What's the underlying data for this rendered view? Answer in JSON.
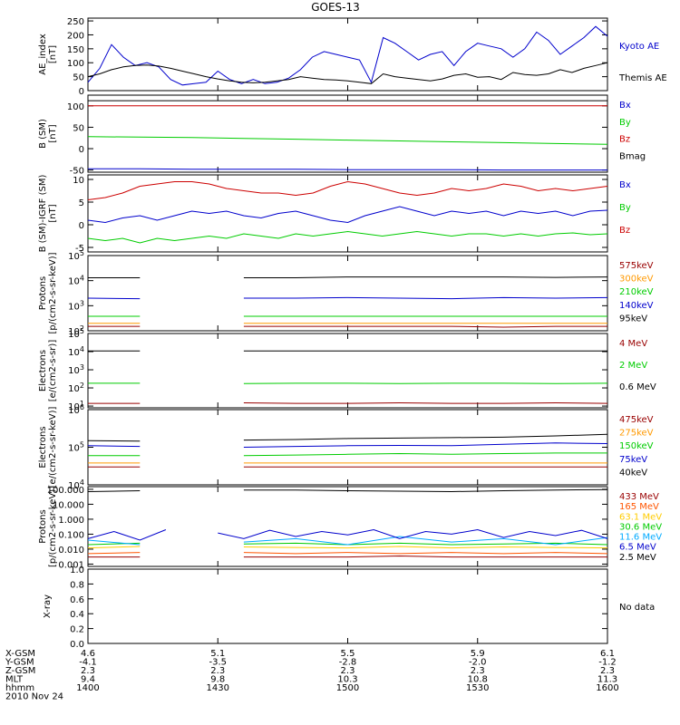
{
  "chart_data": {
    "type": "line",
    "title": "GOES-13",
    "x_ticks": [
      "1400",
      "1430",
      "1500",
      "1530",
      "1600"
    ],
    "orbit_labels": {
      "rows": [
        {
          "name": "X-GSM",
          "values": [
            "4.6",
            "5.1",
            "5.5",
            "5.9",
            "6.1"
          ]
        },
        {
          "name": "Y-GSM",
          "values": [
            "-4.1",
            "-3.5",
            "-2.8",
            "-2.0",
            "-1.2"
          ]
        },
        {
          "name": "Z-GSM",
          "values": [
            "2.3",
            "2.3",
            "2.3",
            "2.3",
            "2.3"
          ]
        },
        {
          "name": "MLT",
          "values": [
            "9.4",
            "9.8",
            "10.3",
            "10.8",
            "11.3"
          ]
        },
        {
          "name": "hhmm",
          "values": [
            "1400",
            "1430",
            "1500",
            "1530",
            "1600"
          ]
        }
      ],
      "date": "2010 Nov 24"
    },
    "panels": [
      {
        "ylabel": "AE_index\n[nT]",
        "scale": "linear",
        "ylim": [
          0,
          260
        ],
        "ytick_labels": [
          "250",
          "200",
          "150",
          "100",
          "50",
          "0"
        ],
        "ytick_values": [
          250,
          200,
          150,
          100,
          50,
          0
        ],
        "series": [
          {
            "name": "Kyoto AE",
            "color": "#0000cc",
            "values": [
              30,
              80,
              165,
              120,
              90,
              100,
              85,
              40,
              20,
              25,
              30,
              70,
              40,
              25,
              40,
              25,
              30,
              45,
              75,
              120,
              140,
              130,
              120,
              110,
              30,
              190,
              170,
              140,
              110,
              130,
              140,
              90,
              140,
              170,
              160,
              150,
              120,
              150,
              210,
              180,
              130,
              160,
              190,
              230,
              195
            ]
          },
          {
            "name": "Themis AE",
            "color": "#000000",
            "values": [
              50,
              60,
              75,
              85,
              90,
              92,
              88,
              80,
              70,
              60,
              50,
              42,
              35,
              30,
              28,
              30,
              35,
              40,
              50,
              45,
              40,
              38,
              35,
              30,
              25,
              60,
              50,
              45,
              40,
              35,
              42,
              55,
              60,
              48,
              50,
              40,
              65,
              58,
              55,
              60,
              75,
              65,
              80,
              90,
              100
            ]
          }
        ]
      },
      {
        "ylabel": "B (SM)\n[nT]",
        "scale": "linear",
        "ylim": [
          -55,
          125
        ],
        "ytick_labels": [
          "100",
          "50",
          "0",
          "-50"
        ],
        "ytick_values": [
          100,
          50,
          0,
          -50
        ],
        "series": [
          {
            "name": "Bx",
            "color": "#0000cc",
            "values": [
              -47,
              -47,
              -48,
              -48,
              -48,
              -49,
              -49,
              -49,
              -50,
              -50,
              -50
            ]
          },
          {
            "name": "By",
            "color": "#00cc00",
            "values": [
              28,
              27,
              26,
              24,
              22,
              20,
              18,
              16,
              14,
              12,
              10
            ]
          },
          {
            "name": "Bz",
            "color": "#cc0000",
            "values": [
              100,
              100,
              100,
              100,
              100,
              100,
              100,
              100,
              100,
              100,
              100
            ]
          },
          {
            "name": "Bmag",
            "color": "#000000",
            "values": [
              112,
              112,
              112,
              112,
              112,
              112,
              112,
              112,
              112,
              112,
              112
            ]
          }
        ]
      },
      {
        "ylabel": "B (SM)-IGRF (SM)\n[nT]",
        "scale": "linear",
        "ylim": [
          -6,
          11
        ],
        "ytick_labels": [
          "10",
          "5",
          "0",
          "-5"
        ],
        "ytick_values": [
          10,
          5,
          0,
          -5
        ],
        "series": [
          {
            "name": "Bx",
            "color": "#0000cc",
            "values": [
              1,
              0.5,
              1.5,
              2,
              1,
              2,
              3,
              2.5,
              3,
              2,
              1.5,
              2.5,
              3,
              2,
              1,
              0.5,
              2,
              3,
              4,
              3,
              2,
              3,
              2.5,
              3,
              2,
              3,
              2.5,
              3,
              2,
              3,
              3.2
            ]
          },
          {
            "name": "By",
            "color": "#00cc00",
            "values": [
              -3,
              -3.5,
              -3,
              -4,
              -3,
              -3.5,
              -3,
              -2.5,
              -3,
              -2,
              -2.5,
              -3,
              -2,
              -2.5,
              -2,
              -1.5,
              -2,
              -2.5,
              -2,
              -1.5,
              -2,
              -2.5,
              -2,
              -2,
              -2.5,
              -2,
              -2.5,
              -2,
              -1.8,
              -2.2,
              -2
            ]
          },
          {
            "name": "Bz",
            "color": "#cc0000",
            "values": [
              5.5,
              6,
              7,
              8.5,
              9,
              9.5,
              9.5,
              9,
              8,
              7.5,
              7,
              7,
              6.5,
              7,
              8.5,
              9.5,
              9,
              8,
              7,
              6.5,
              7,
              8,
              7.5,
              8,
              9,
              8.5,
              7.5,
              8,
              7.5,
              8,
              8.5
            ]
          }
        ]
      },
      {
        "ylabel": "Protons\n[p/(cm2-s-sr-keV)]",
        "scale": "log",
        "ylim": [
          100.0,
          100000.0
        ],
        "ytick_labels": [
          "10^5",
          "10^4",
          "10^3",
          "10^2"
        ],
        "ytick_values": [
          100000,
          10000,
          1000,
          100
        ],
        "gap": [
          1423,
          1428
        ],
        "series": [
          {
            "name": "575keV",
            "color": "#990000",
            "values": [
              150,
              150,
              140,
              150,
              150,
              150,
              150,
              150,
              140,
              150,
              150
            ]
          },
          {
            "name": "300keV",
            "color": "#ff9900",
            "values": [
              200,
              200,
              200,
              200,
              200,
              200,
              200,
              200,
              200,
              200,
              200
            ]
          },
          {
            "name": "210keV",
            "color": "#00cc00",
            "values": [
              380,
              380,
              380,
              380,
              380,
              380,
              380,
              380,
              380,
              380,
              380
            ]
          },
          {
            "name": "140keV",
            "color": "#0000cc",
            "values": [
              2000,
              1900,
              1700,
              2000,
              2000,
              2100,
              2000,
              1900,
              2100,
              2000,
              2100
            ]
          },
          {
            "name": "95keV",
            "color": "#000000",
            "values": [
              13000,
              13000,
              12000,
              13000,
              13000,
              14000,
              14000,
              14000,
              14000,
              13500,
              14000
            ]
          }
        ]
      },
      {
        "ylabel": "Electrons\n[e/(cm2-s-sr)]",
        "scale": "log",
        "ylim": [
          8,
          100000.0
        ],
        "ytick_labels": [
          "10^5",
          "10^4",
          "10^3",
          "10^2",
          "10^1"
        ],
        "ytick_values": [
          100000,
          10000,
          1000,
          100,
          10
        ],
        "gap": [
          1423,
          1428
        ],
        "series": [
          {
            "name": "4 MeV",
            "color": "#990000",
            "values": [
              14,
              14,
              13,
              15,
              14,
              14,
              15,
              14,
              14,
              15,
              14
            ]
          },
          {
            "name": "2 MeV",
            "color": "#00cc00",
            "values": [
              180,
              180,
              170,
              175,
              180,
              180,
              175,
              180,
              180,
              175,
              180
            ]
          },
          {
            "name": "0.6 MeV",
            "color": "#000000",
            "values": [
              11000,
              11000,
              12000,
              11000,
              11000,
              11000,
              11000,
              11000,
              11000,
              11000,
              11000
            ]
          }
        ]
      },
      {
        "ylabel": "Electrons\n[e/(cm2-s-sr-keV)]",
        "scale": "log",
        "ylim": [
          10000.0,
          1000000.0
        ],
        "ytick_labels": [
          "10^6",
          "10^5",
          "10^4"
        ],
        "ytick_values": [
          1000000,
          100000,
          10000
        ],
        "gap": [
          1423,
          1428
        ],
        "series": [
          {
            "name": "475keV",
            "color": "#990000",
            "values": [
              30000,
              30000,
              30000,
              30000,
              30000,
              30000,
              30000,
              30000,
              30000,
              30000,
              30000
            ]
          },
          {
            "name": "275keV",
            "color": "#ff9900",
            "values": [
              38000,
              38000,
              38000,
              38000,
              38000,
              38000,
              38000,
              38000,
              38000,
              38000,
              38000
            ]
          },
          {
            "name": "150keV",
            "color": "#00cc00",
            "values": [
              60000,
              60000,
              60000,
              60000,
              62000,
              65000,
              68000,
              65000,
              68000,
              70000,
              70000
            ]
          },
          {
            "name": "75keV",
            "color": "#0000cc",
            "values": [
              110000,
              105000,
              108000,
              100000,
              105000,
              110000,
              112000,
              110000,
              120000,
              130000,
              125000
            ]
          },
          {
            "name": "40keV",
            "color": "#000000",
            "values": [
              150000,
              145000,
              150000,
              155000,
              160000,
              170000,
              175000,
              180000,
              185000,
              200000,
              220000
            ]
          }
        ]
      },
      {
        "ylabel": "Protons\n[p/(cm2-s-sr-keV)]",
        "scale": "log",
        "ylim": [
          0.0007,
          150
        ],
        "ytick_labels": [
          "100.000",
          "10.000",
          "1.000",
          "0.100",
          "0.010",
          "0.001"
        ],
        "ytick_values": [
          100,
          10,
          1,
          0.1,
          0.01,
          0.001
        ],
        "gap": [
          1423,
          1428
        ],
        "series": [
          {
            "name": "433 MeV",
            "color": "#990000",
            "values": [
              0.003,
              0.003,
              0.0035,
              0.003,
              0.003,
              0.003,
              0.0035,
              0.003,
              0.003,
              0.003,
              0.003
            ]
          },
          {
            "name": "165 MeV",
            "color": "#ff5500",
            "values": [
              0.005,
              0.006,
              0.005,
              0.006,
              0.005,
              0.006,
              0.005,
              0.006,
              0.005,
              0.006,
              0.005
            ]
          },
          {
            "name": "63.1 MeV",
            "color": "#ffcc00",
            "values": [
              0.012,
              0.015,
              0.012,
              0.014,
              0.013,
              0.012,
              0.015,
              0.012,
              0.014,
              0.013,
              0.012
            ]
          },
          {
            "name": "30.6 MeV",
            "color": "#00cc00",
            "values": [
              0.02,
              0.025,
              0.02,
              0.022,
              0.025,
              0.02,
              0.025,
              0.02,
              0.022,
              0.025,
              0.02
            ]
          },
          {
            "name": "11.6 MeV",
            "color": "#00aaff",
            "values": [
              0.04,
              0.02,
              0.06,
              0.03,
              0.05,
              0.02,
              0.07,
              0.03,
              0.05,
              0.02,
              0.06
            ]
          },
          {
            "name": "6.5 MeV",
            "color": "#0000cc",
            "values": [
              0.05,
              0.15,
              0.04,
              0.2,
              0.08,
              0.12,
              0.05,
              0.18,
              0.07,
              0.15,
              0.09,
              0.2,
              0.05,
              0.15,
              0.1,
              0.2,
              0.06,
              0.15,
              0.08,
              0.18,
              0.05
            ]
          },
          {
            "name": "2.5 MeV",
            "color": "#000000",
            "values": [
              70,
              80,
              85,
              90,
              90,
              80,
              75,
              70,
              80,
              90,
              95
            ]
          }
        ]
      },
      {
        "ylabel": "X-ray",
        "scale": "linear",
        "ylim": [
          0,
          1.0
        ],
        "ytick_labels": [
          "1.0",
          "0.8",
          "0.6",
          "0.4",
          "0.2",
          "0.0"
        ],
        "ytick_values": [
          1.0,
          0.8,
          0.6,
          0.4,
          0.2,
          0.0
        ],
        "series": [],
        "legend_text": "No data"
      }
    ]
  }
}
